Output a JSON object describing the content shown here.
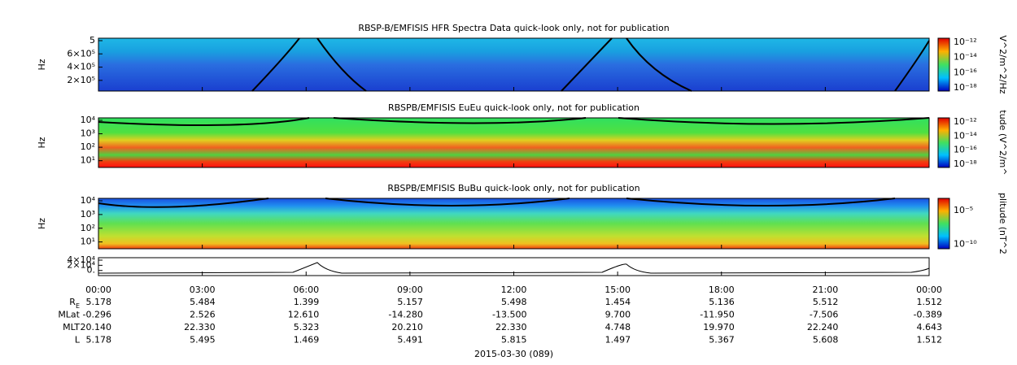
{
  "panels": [
    {
      "title": "RBSP-B/EMFISIS  HFR Spectra Data quick-look only, not for publication",
      "y_label": "Hz",
      "yticks": [
        "5",
        "6×10⁵",
        "4×10⁵",
        "2×10⁵"
      ],
      "colorbar_label": "V^2/m^2/Hz",
      "colorbar_ticks": [
        "10⁻¹²",
        "10⁻¹⁴",
        "10⁻¹⁶",
        "10⁻¹⁸"
      ]
    },
    {
      "title": "RBSPB/EMFISIS  EuEu quick-look only, not for publication",
      "y_label": "Hz",
      "yticks": [
        "10⁴",
        "10³",
        "10²",
        "10¹"
      ],
      "colorbar_label": "tude (V^2/m^",
      "colorbar_ticks": [
        "10⁻¹²",
        "10⁻¹⁴",
        "10⁻¹⁶",
        "10⁻¹⁸"
      ]
    },
    {
      "title": "RBSPB/EMFISIS  BuBu quick-look only, not for publication",
      "y_label": "Hz",
      "yticks": [
        "10⁴",
        "10³",
        "10²",
        "10¹"
      ],
      "colorbar_label": "plitude (nT^2",
      "colorbar_ticks": [
        "10⁻⁵",
        "10⁻¹⁰"
      ]
    },
    {
      "yticks": [
        "4×10⁴",
        "2×10⁴",
        "0."
      ]
    }
  ],
  "time_labels": [
    "00:00",
    "03:00",
    "06:00",
    "09:00",
    "12:00",
    "15:00",
    "18:00",
    "21:00",
    "00:00"
  ],
  "ephemeris": [
    {
      "label": "R",
      "sub": "E",
      "values": [
        "5.178",
        "5.484",
        "1.399",
        "5.157",
        "5.498",
        "1.454",
        "5.136",
        "5.512",
        "1.512"
      ]
    },
    {
      "label": "MLat",
      "values": [
        "-0.296",
        "2.526",
        "12.610",
        "-14.280",
        "-13.500",
        "9.700",
        "-11.950",
        "-7.506",
        "-0.389"
      ]
    },
    {
      "label": "MLT",
      "values": [
        "20.140",
        "22.330",
        "5.323",
        "20.210",
        "22.330",
        "4.748",
        "19.970",
        "22.240",
        "4.643"
      ]
    },
    {
      "label": "L",
      "values": [
        "5.178",
        "5.495",
        "1.469",
        "5.491",
        "5.815",
        "1.497",
        "5.367",
        "5.608",
        "1.512"
      ]
    }
  ],
  "date": "2015-03-30 (089)"
}
